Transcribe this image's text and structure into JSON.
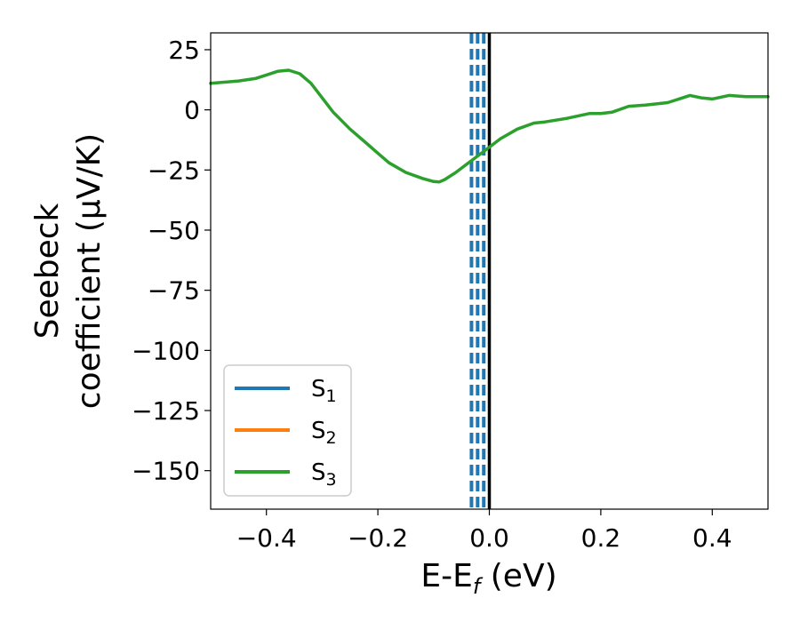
{
  "chart_data": {
    "type": "line",
    "xlabel": "E-E$_f$ (eV)",
    "xlabel_parts": {
      "base": "E-E",
      "sub": "f",
      "suffix": " (eV)"
    },
    "ylabel": "Seebeck coefficient ($\\mu$V/K)",
    "ylabel_lines": [
      "Seebeck",
      "coefficient  (μV/K)"
    ],
    "xlim": [
      -0.5,
      0.5
    ],
    "ylim": [
      -166,
      32
    ],
    "xticks": [
      -0.4,
      -0.2,
      0.0,
      0.2,
      0.4
    ],
    "xtick_labels": [
      "−0.4",
      "−0.2",
      "0.0",
      "0.2",
      "0.4"
    ],
    "yticks": [
      25,
      0,
      -25,
      -50,
      -75,
      -100,
      -125,
      -150
    ],
    "ytick_labels": [
      "25",
      "0",
      "−25",
      "−50",
      "−75",
      "−100",
      "−125",
      "−150"
    ],
    "grid": false,
    "legend_position": "lower-left",
    "series": [
      {
        "name": "S",
        "sub": "1",
        "color": "#1f77b4",
        "x": [],
        "y": []
      },
      {
        "name": "S",
        "sub": "2",
        "color": "#ff7f0e",
        "x": [],
        "y": []
      },
      {
        "name": "S",
        "sub": "3",
        "color": "#2ca02c",
        "x": [
          -0.5,
          -0.45,
          -0.42,
          -0.4,
          -0.38,
          -0.36,
          -0.34,
          -0.32,
          -0.3,
          -0.28,
          -0.25,
          -0.22,
          -0.2,
          -0.18,
          -0.15,
          -0.12,
          -0.1,
          -0.09,
          -0.08,
          -0.06,
          -0.04,
          -0.02,
          0.0,
          0.02,
          0.05,
          0.08,
          0.1,
          0.14,
          0.18,
          0.2,
          0.22,
          0.25,
          0.28,
          0.32,
          0.36,
          0.38,
          0.4,
          0.43,
          0.46,
          0.5
        ],
        "y": [
          11,
          12,
          13,
          14.5,
          16,
          16.5,
          15,
          11,
          5,
          -1,
          -8,
          -14,
          -18,
          -22,
          -26,
          -28.5,
          -29.8,
          -30,
          -29,
          -26,
          -22.5,
          -19,
          -15.5,
          -12,
          -8,
          -5.5,
          -5,
          -3.5,
          -1.5,
          -1.5,
          -1,
          1.5,
          2,
          3,
          6,
          5,
          4.5,
          6,
          5.5,
          5.5
        ]
      }
    ],
    "vertical_lines": [
      {
        "x": -0.032,
        "style": "dashed",
        "color": "#1f77b4"
      },
      {
        "x": -0.021,
        "style": "dashed",
        "color": "#1f77b4"
      },
      {
        "x": -0.01,
        "style": "dashed",
        "color": "#1f77b4"
      },
      {
        "x": 0.0,
        "style": "solid",
        "color": "#000000"
      }
    ]
  }
}
